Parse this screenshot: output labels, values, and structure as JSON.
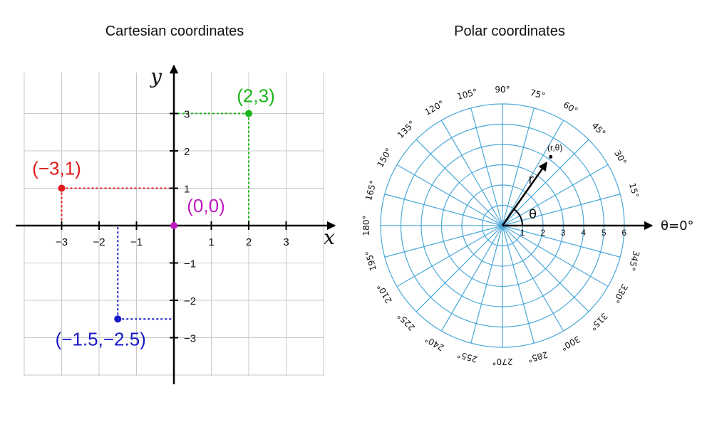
{
  "colors": {
    "grid": "#c8c8c8",
    "polar_grid": "#4aa8d8",
    "axis": "#000000",
    "red": "#e01b1b",
    "green": "#1bb41b",
    "blue": "#1717c8",
    "magenta": "#c21ac2"
  },
  "cartesian": {
    "title": "Cartesian coordinates",
    "x_axis_label": "x",
    "y_axis_label": "y",
    "x_ticks": [
      {
        "value": -3,
        "label": "−3"
      },
      {
        "value": -2,
        "label": "−2"
      },
      {
        "value": -1,
        "label": "−1"
      },
      {
        "value": 1,
        "label": "1"
      },
      {
        "value": 2,
        "label": "2"
      },
      {
        "value": 3,
        "label": "3"
      }
    ],
    "y_ticks": [
      {
        "value": 3,
        "label": "3"
      },
      {
        "value": 2,
        "label": "2"
      },
      {
        "value": 1,
        "label": "1"
      },
      {
        "value": -1,
        "label": "−1"
      },
      {
        "value": -2,
        "label": "−2"
      },
      {
        "value": -3,
        "label": "−3"
      }
    ],
    "points": [
      {
        "x": 2,
        "y": 3,
        "label": "(2,3)",
        "color": "#1bb41b"
      },
      {
        "x": -3,
        "y": 1,
        "label": "(−3,1)",
        "color": "#e01b1b"
      },
      {
        "x": 0,
        "y": 0,
        "label": "(0,0)",
        "color": "#c21ac2"
      },
      {
        "x": -1.5,
        "y": -2.5,
        "label": "(−1.5,−2.5)",
        "color": "#1717c8"
      }
    ]
  },
  "polar": {
    "title": "Polar coordinates",
    "angle_labels": [
      "0°",
      "15°",
      "30°",
      "45°",
      "60°",
      "75°",
      "90°",
      "105°",
      "120°",
      "135°",
      "150°",
      "165°",
      "180°",
      "195°",
      "210°",
      "225°",
      "240°",
      "255°",
      "270°",
      "285°",
      "300°",
      "315°",
      "330°",
      "345°"
    ],
    "radial_ticks": [
      "1",
      "2",
      "3",
      "4",
      "5",
      "6"
    ],
    "axis_label": "θ=0°",
    "point_label": "(r,θ)",
    "r_label": "r",
    "theta_label": "θ",
    "point": {
      "r": 4,
      "theta_deg": 55
    }
  }
}
